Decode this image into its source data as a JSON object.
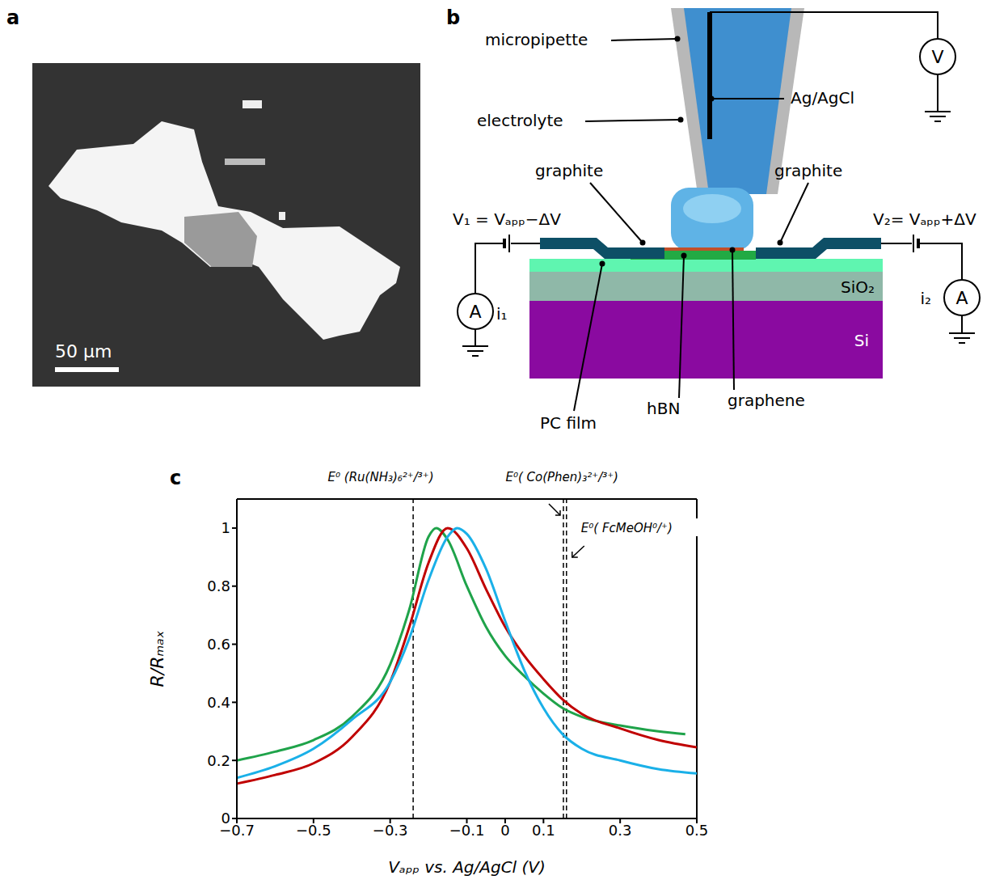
{
  "panel_a": {
    "letter": "a",
    "scale_bar": "50 µm"
  },
  "panel_b": {
    "letter": "b",
    "labels": {
      "pipette": "micropipette",
      "electrolyte": "electrolyte",
      "electrode": "Ag/AgCl",
      "meter": "V",
      "graphite_left": "graphite",
      "graphite_right": "graphite",
      "v1": "V₁ = Vₐₚₚ−ΔV",
      "v2": "V₂= Vₐₚₚ+ΔV",
      "ammeter_left": "A",
      "ammeter_right": "A",
      "current_left": "i₁",
      "current_right": "i₂",
      "oxide": "SiO₂",
      "silicon": "Si",
      "pc": "PC film",
      "hbn": "hBN",
      "graphene": "graphene"
    }
  },
  "chart_data": {
    "letter": "c",
    "type": "line",
    "x_label": "Vₐₚₚ vs. Ag/AgCl (V)",
    "y_label": "R/Rₘₐₓ",
    "xlim": [
      -0.7,
      0.5
    ],
    "xticks": [
      {
        "value": -0.7,
        "label": "−0.7"
      },
      {
        "value": -0.5,
        "label": "−0.5"
      },
      {
        "value": -0.3,
        "label": "−0.3"
      },
      {
        "value": -0.1,
        "label": "−0.1"
      },
      0,
      0.1,
      0.3,
      0.5
    ],
    "ylim": [
      0,
      1.1
    ],
    "yticks": [
      0,
      0.2,
      0.4,
      0.6,
      0.8,
      1
    ],
    "series": [
      {
        "color": "#1fa34a",
        "x": [
          -0.7,
          -0.6,
          -0.5,
          -0.4,
          -0.3,
          -0.25,
          -0.2,
          -0.18,
          -0.15,
          -0.1,
          -0.05,
          0,
          0.05,
          0.1,
          0.15,
          0.2,
          0.3,
          0.4,
          0.47
        ],
        "values": [
          0.2,
          0.23,
          0.27,
          0.35,
          0.53,
          0.72,
          0.97,
          1.0,
          0.96,
          0.8,
          0.66,
          0.56,
          0.49,
          0.43,
          0.38,
          0.35,
          0.32,
          0.3,
          0.29
        ]
      },
      {
        "color": "#c00000",
        "x": [
          -0.7,
          -0.6,
          -0.5,
          -0.4,
          -0.3,
          -0.25,
          -0.2,
          -0.15,
          -0.1,
          -0.05,
          0,
          0.05,
          0.1,
          0.15,
          0.2,
          0.3,
          0.4,
          0.5
        ],
        "values": [
          0.12,
          0.15,
          0.19,
          0.28,
          0.47,
          0.66,
          0.88,
          1.0,
          0.93,
          0.79,
          0.66,
          0.56,
          0.48,
          0.41,
          0.36,
          0.31,
          0.27,
          0.245
        ]
      },
      {
        "color": "#1ab0e8",
        "x": [
          -0.7,
          -0.6,
          -0.5,
          -0.4,
          -0.3,
          -0.25,
          -0.2,
          -0.15,
          -0.125,
          -0.1,
          -0.05,
          0,
          0.05,
          0.1,
          0.15,
          0.2,
          0.3,
          0.4,
          0.5
        ],
        "values": [
          0.14,
          0.18,
          0.24,
          0.34,
          0.47,
          0.62,
          0.82,
          0.97,
          1.0,
          0.98,
          0.86,
          0.68,
          0.51,
          0.38,
          0.29,
          0.24,
          0.2,
          0.17,
          0.155
        ]
      }
    ],
    "reference_lines": [
      {
        "x": -0.24,
        "label": "E⁰ (Ru(NH₃)₆²⁺/³⁺)"
      },
      {
        "x": 0.152,
        "label": "E⁰( Co(Phen)₃²⁺/³⁺)"
      },
      {
        "x": 0.16,
        "label": "E⁰( FcMeOH⁰/⁺)"
      }
    ]
  }
}
